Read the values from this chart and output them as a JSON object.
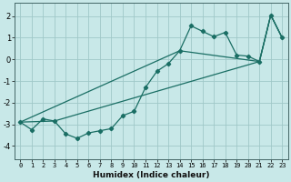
{
  "xlabel": "Humidex (Indice chaleur)",
  "bg_color": "#c8e8e8",
  "grid_color": "#a0c8c8",
  "line_color": "#1a6e64",
  "xlim": [
    -0.5,
    23.5
  ],
  "ylim": [
    -4.6,
    2.6
  ],
  "yticks": [
    -4,
    -3,
    -2,
    -1,
    0,
    1,
    2
  ],
  "xticks": [
    0,
    1,
    2,
    3,
    4,
    5,
    6,
    7,
    8,
    9,
    10,
    11,
    12,
    13,
    14,
    15,
    16,
    17,
    18,
    19,
    20,
    21,
    22,
    23
  ],
  "series1_x": [
    0,
    1,
    2,
    3,
    4,
    5,
    6,
    7,
    8,
    9,
    10,
    11,
    12,
    13,
    14,
    15,
    16,
    17,
    18,
    19,
    20,
    21,
    22,
    23
  ],
  "series1_y": [
    -2.9,
    -3.25,
    -2.75,
    -2.85,
    -3.45,
    -3.65,
    -3.4,
    -3.3,
    -3.2,
    -2.6,
    -2.4,
    -1.3,
    -0.55,
    -0.2,
    0.4,
    1.55,
    1.3,
    1.05,
    1.25,
    0.2,
    0.15,
    -0.1,
    2.05,
    1.0
  ],
  "series2_x": [
    0,
    3,
    21,
    22,
    23
  ],
  "series2_y": [
    -2.9,
    -2.85,
    -0.1,
    2.05,
    1.0
  ],
  "series3_x": [
    0,
    14,
    21,
    22,
    23
  ],
  "series3_y": [
    -2.9,
    0.4,
    -0.1,
    2.05,
    1.0
  ]
}
